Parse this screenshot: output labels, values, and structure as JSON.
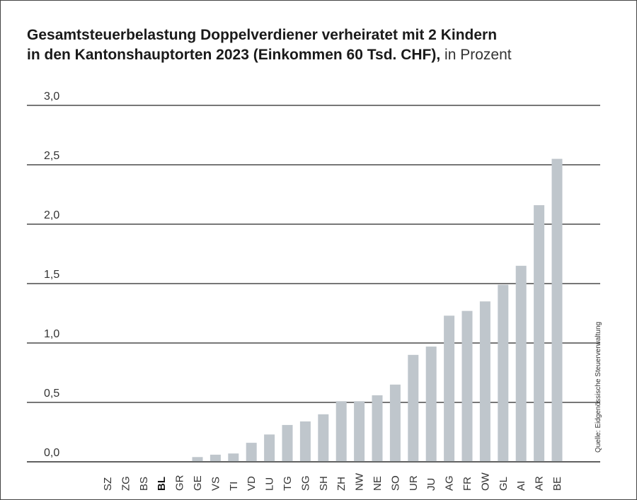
{
  "title_line1": "Gesamtsteuerbelastung Doppelverdiener verheiratet mit 2 Kindern",
  "title_line2_bold": "in den Kantonshauptorten 2023 (Einkommen 60 Tsd. CHF),",
  "title_line2_unit": "in Prozent",
  "source": "Quelle: Eidgenössische Steuerverwaltung",
  "colors": {
    "bar": "#bfc6cc",
    "gridline": "#4a4a4a",
    "text": "#1a1a1a"
  },
  "chart_data": {
    "type": "bar",
    "categories": [
      "SZ",
      "ZG",
      "BS",
      "BL",
      "GR",
      "GE",
      "VS",
      "TI",
      "VD",
      "LU",
      "TG",
      "SG",
      "SH",
      "ZH",
      "NW",
      "NE",
      "SO",
      "UR",
      "JU",
      "AG",
      "FR",
      "OW",
      "GL",
      "AI",
      "AR",
      "BE"
    ],
    "highlight_category": "BL",
    "values": [
      0,
      0,
      0,
      0,
      0,
      0.04,
      0.06,
      0.07,
      0.16,
      0.23,
      0.31,
      0.34,
      0.4,
      0.51,
      0.51,
      0.56,
      0.65,
      0.9,
      0.97,
      1.23,
      1.27,
      1.35,
      1.49,
      1.65,
      2.16,
      2.55
    ],
    "ylim": [
      0,
      3.0
    ],
    "yticks": [
      "0,0",
      "0,5",
      "1,0",
      "1,5",
      "2,0",
      "2,5",
      "3,0"
    ],
    "ytick_values": [
      0,
      0.5,
      1.0,
      1.5,
      2.0,
      2.5,
      3.0
    ],
    "grid": true,
    "xlabel": "",
    "ylabel": ""
  }
}
